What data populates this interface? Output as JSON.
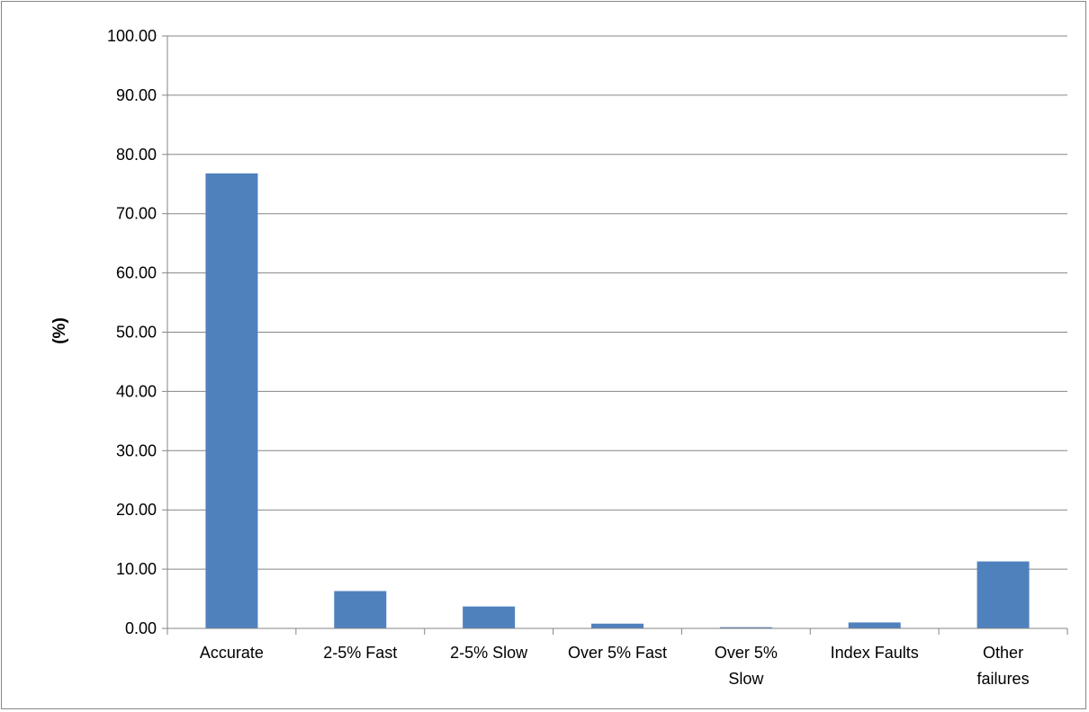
{
  "chart_data": {
    "type": "bar",
    "title": "",
    "xlabel": "",
    "ylabel": "(%)",
    "categories": [
      [
        "Accurate"
      ],
      [
        "2-5% Fast"
      ],
      [
        "2-5% Slow"
      ],
      [
        "Over 5% Fast"
      ],
      [
        "Over 5%",
        "Slow"
      ],
      [
        "Index Faults"
      ],
      [
        "Other",
        "failures"
      ]
    ],
    "values": [
      76.8,
      6.3,
      3.7,
      0.8,
      0.2,
      1.0,
      11.3
    ],
    "ylim": [
      0,
      100
    ],
    "yticks": [
      "0.00",
      "10.00",
      "20.00",
      "30.00",
      "40.00",
      "50.00",
      "60.00",
      "70.00",
      "80.00",
      "90.00",
      "100.00"
    ],
    "grid": true,
    "legend": "none",
    "bar_color": "#4F81BD",
    "grid_color": "#868686"
  }
}
